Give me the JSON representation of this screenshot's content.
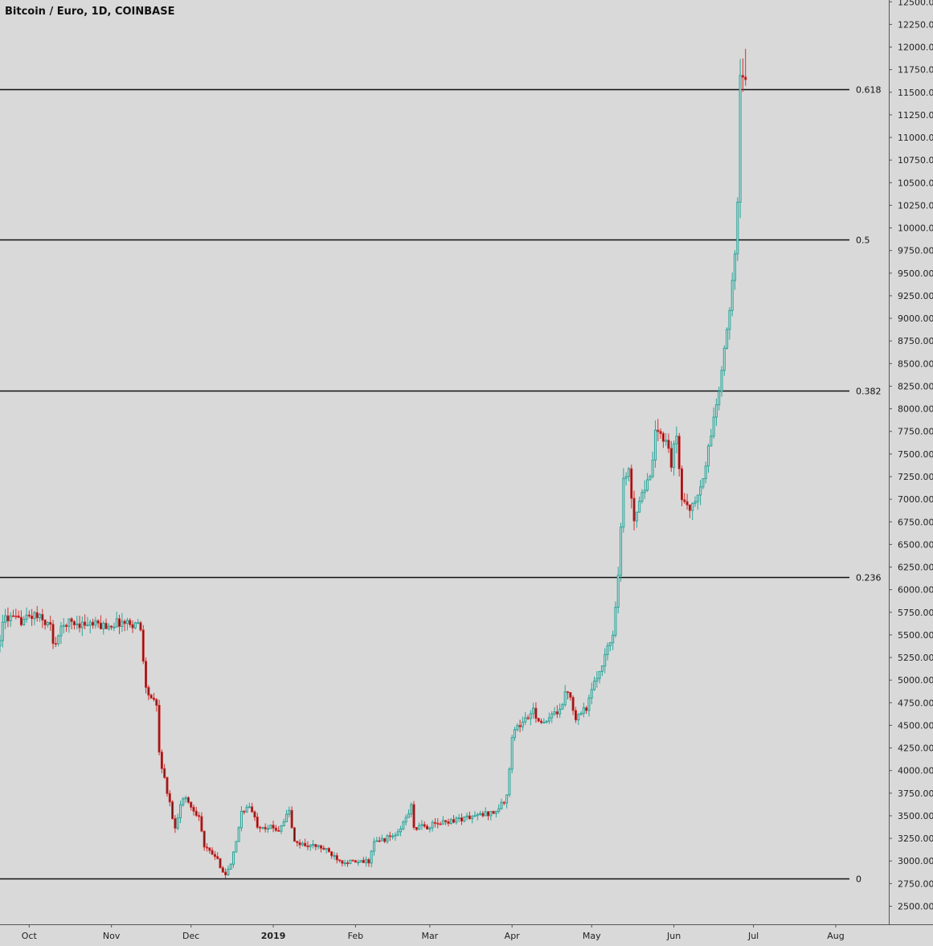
{
  "chart_data": {
    "type": "candlestick",
    "title": "Bitcoin / Euro, 1D, COINBASE",
    "x_axis": {
      "type": "date",
      "ticks": [
        {
          "date": "2018-10-01",
          "label": "Oct"
        },
        {
          "date": "2018-11-01",
          "label": "Nov"
        },
        {
          "date": "2018-12-01",
          "label": "Dec"
        },
        {
          "date": "2019-01-01",
          "label": "2019"
        },
        {
          "date": "2019-02-01",
          "label": "Feb"
        },
        {
          "date": "2019-03-01",
          "label": "Mar"
        },
        {
          "date": "2019-04-01",
          "label": "Apr"
        },
        {
          "date": "2019-05-01",
          "label": "May"
        },
        {
          "date": "2019-06-01",
          "label": "Jun"
        },
        {
          "date": "2019-07-01",
          "label": "Jul"
        },
        {
          "date": "2019-08-01",
          "label": "Aug"
        }
      ],
      "range": [
        "2018-09-20",
        "2019-08-21"
      ]
    },
    "y_axis": {
      "position": "right",
      "ylim": [
        2300,
        12520
      ],
      "ticks": [
        "2500.00",
        "2750.00",
        "3000.00",
        "3250.00",
        "3500.00",
        "3750.00",
        "4000.00",
        "4250.00",
        "4500.00",
        "4750.00",
        "5000.00",
        "5250.00",
        "5500.00",
        "5750.00",
        "6000.00",
        "6250.00",
        "6500.00",
        "6750.00",
        "7000.00",
        "7250.00",
        "7500.00",
        "7750.00",
        "8000.00",
        "8250.00",
        "8500.00",
        "8750.00",
        "9000.00",
        "9250.00",
        "9500.00",
        "9750.00",
        "10000.00",
        "10250.00",
        "10500.00",
        "10750.00",
        "11000.00",
        "11250.00",
        "11500.00",
        "11750.00",
        "12000.00",
        "12250.00",
        "12500.00"
      ]
    },
    "fib_levels": [
      {
        "label": "0",
        "value": 2810
      },
      {
        "label": "0.236",
        "value": 6142
      },
      {
        "label": "0.382",
        "value": 8203
      },
      {
        "label": "0.5",
        "value": 9868
      },
      {
        "label": "0.618",
        "value": 11534
      }
    ],
    "colors": {
      "up": "#26a69a",
      "down": "#d32f2f",
      "down_body": "#5a1010",
      "up_body": "#d9d9d9",
      "background": "#d9d9d9",
      "level_line": "#111111"
    },
    "trend_knots": [
      [
        "2018-09-20",
        5380
      ],
      [
        "2018-09-23",
        5700
      ],
      [
        "2018-09-28",
        5650
      ],
      [
        "2018-10-04",
        5720
      ],
      [
        "2018-10-10",
        5600
      ],
      [
        "2018-10-11",
        5380
      ],
      [
        "2018-10-14",
        5550
      ],
      [
        "2018-10-16",
        5640
      ],
      [
        "2018-10-31",
        5600
      ],
      [
        "2018-11-05",
        5640
      ],
      [
        "2018-11-12",
        5620
      ],
      [
        "2018-11-13",
        5560
      ],
      [
        "2018-11-14",
        5250
      ],
      [
        "2018-11-15",
        4900
      ],
      [
        "2018-11-19",
        4700
      ],
      [
        "2018-11-20",
        4200
      ],
      [
        "2018-11-22",
        3900
      ],
      [
        "2018-11-25",
        3500
      ],
      [
        "2018-11-26",
        3350
      ],
      [
        "2018-11-28",
        3650
      ],
      [
        "2018-11-30",
        3700
      ],
      [
        "2018-12-02",
        3600
      ],
      [
        "2018-12-05",
        3500
      ],
      [
        "2018-12-07",
        3150
      ],
      [
        "2018-12-11",
        3050
      ],
      [
        "2018-12-15",
        2850
      ],
      [
        "2018-12-17",
        2950
      ],
      [
        "2018-12-19",
        3200
      ],
      [
        "2018-12-21",
        3550
      ],
      [
        "2018-12-24",
        3600
      ],
      [
        "2018-12-27",
        3400
      ],
      [
        "2019-01-04",
        3350
      ],
      [
        "2019-01-08",
        3550
      ],
      [
        "2019-01-10",
        3200
      ],
      [
        "2019-01-20",
        3150
      ],
      [
        "2019-01-28",
        3000
      ],
      [
        "2019-02-03",
        2980
      ],
      [
        "2019-02-07",
        3000
      ],
      [
        "2019-02-09",
        3200
      ],
      [
        "2019-02-18",
        3300
      ],
      [
        "2019-02-23",
        3600
      ],
      [
        "2019-02-24",
        3370
      ],
      [
        "2019-03-01",
        3380
      ],
      [
        "2019-03-10",
        3450
      ],
      [
        "2019-03-20",
        3500
      ],
      [
        "2019-03-27",
        3550
      ],
      [
        "2019-03-31",
        3700
      ],
      [
        "2019-04-02",
        4400
      ],
      [
        "2019-04-03",
        4450
      ],
      [
        "2019-04-10",
        4650
      ],
      [
        "2019-04-14",
        4500
      ],
      [
        "2019-04-20",
        4700
      ],
      [
        "2019-04-23",
        4900
      ],
      [
        "2019-04-26",
        4600
      ],
      [
        "2019-04-30",
        4700
      ],
      [
        "2019-05-06",
        5200
      ],
      [
        "2019-05-10",
        5500
      ],
      [
        "2019-05-12",
        6200
      ],
      [
        "2019-05-14",
        7200
      ],
      [
        "2019-05-16",
        7300
      ],
      [
        "2019-05-18",
        6800
      ],
      [
        "2019-05-21",
        7100
      ],
      [
        "2019-05-24",
        7200
      ],
      [
        "2019-05-26",
        7700
      ],
      [
        "2019-05-30",
        7700
      ],
      [
        "2019-06-01",
        7400
      ],
      [
        "2019-06-03",
        7700
      ],
      [
        "2019-06-05",
        7000
      ],
      [
        "2019-06-09",
        6900
      ],
      [
        "2019-06-13",
        7200
      ],
      [
        "2019-06-17",
        7900
      ],
      [
        "2019-06-19",
        8200
      ],
      [
        "2019-06-21",
        8600
      ],
      [
        "2019-06-23",
        9100
      ],
      [
        "2019-06-25",
        9800
      ],
      [
        "2019-06-26",
        10300
      ],
      [
        "2019-06-27",
        11600
      ],
      [
        "2019-06-28",
        11650
      ]
    ]
  }
}
